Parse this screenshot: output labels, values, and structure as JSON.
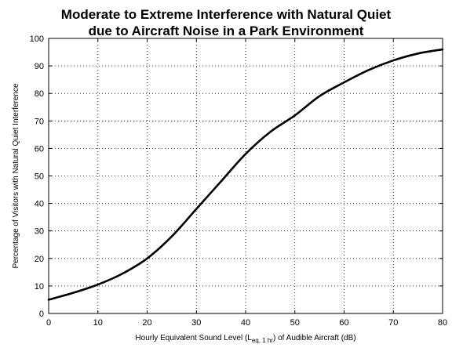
{
  "chart_data": {
    "type": "line",
    "title_line1": "Moderate to Extreme Interference with Natural Quiet",
    "title_line2": "due to Aircraft Noise in a Park Environment",
    "xlabel_pre": "Hourly Equivalent Sound Level (L",
    "xlabel_sub": "eq, 1 hr",
    "xlabel_post": ") of Audible Aircraft (dB)",
    "ylabel": "Percentage of Visitors with Natural Quiet Interference",
    "xlim": [
      0,
      80
    ],
    "ylim": [
      0,
      100
    ],
    "xticks": [
      0,
      10,
      20,
      30,
      40,
      50,
      60,
      70,
      80
    ],
    "yticks": [
      0,
      10,
      20,
      30,
      40,
      50,
      60,
      70,
      80,
      90,
      100
    ],
    "grid": true,
    "line_color": "#000000",
    "series": [
      {
        "x": [
          0,
          5,
          10,
          15,
          20,
          25,
          30,
          35,
          40,
          45,
          50,
          55,
          60,
          65,
          70,
          75,
          80
        ],
        "y": [
          5,
          7.5,
          10.5,
          14.5,
          20,
          28,
          38,
          48,
          58,
          66,
          72,
          79,
          84,
          88.5,
          92,
          94.5,
          96
        ]
      }
    ]
  }
}
